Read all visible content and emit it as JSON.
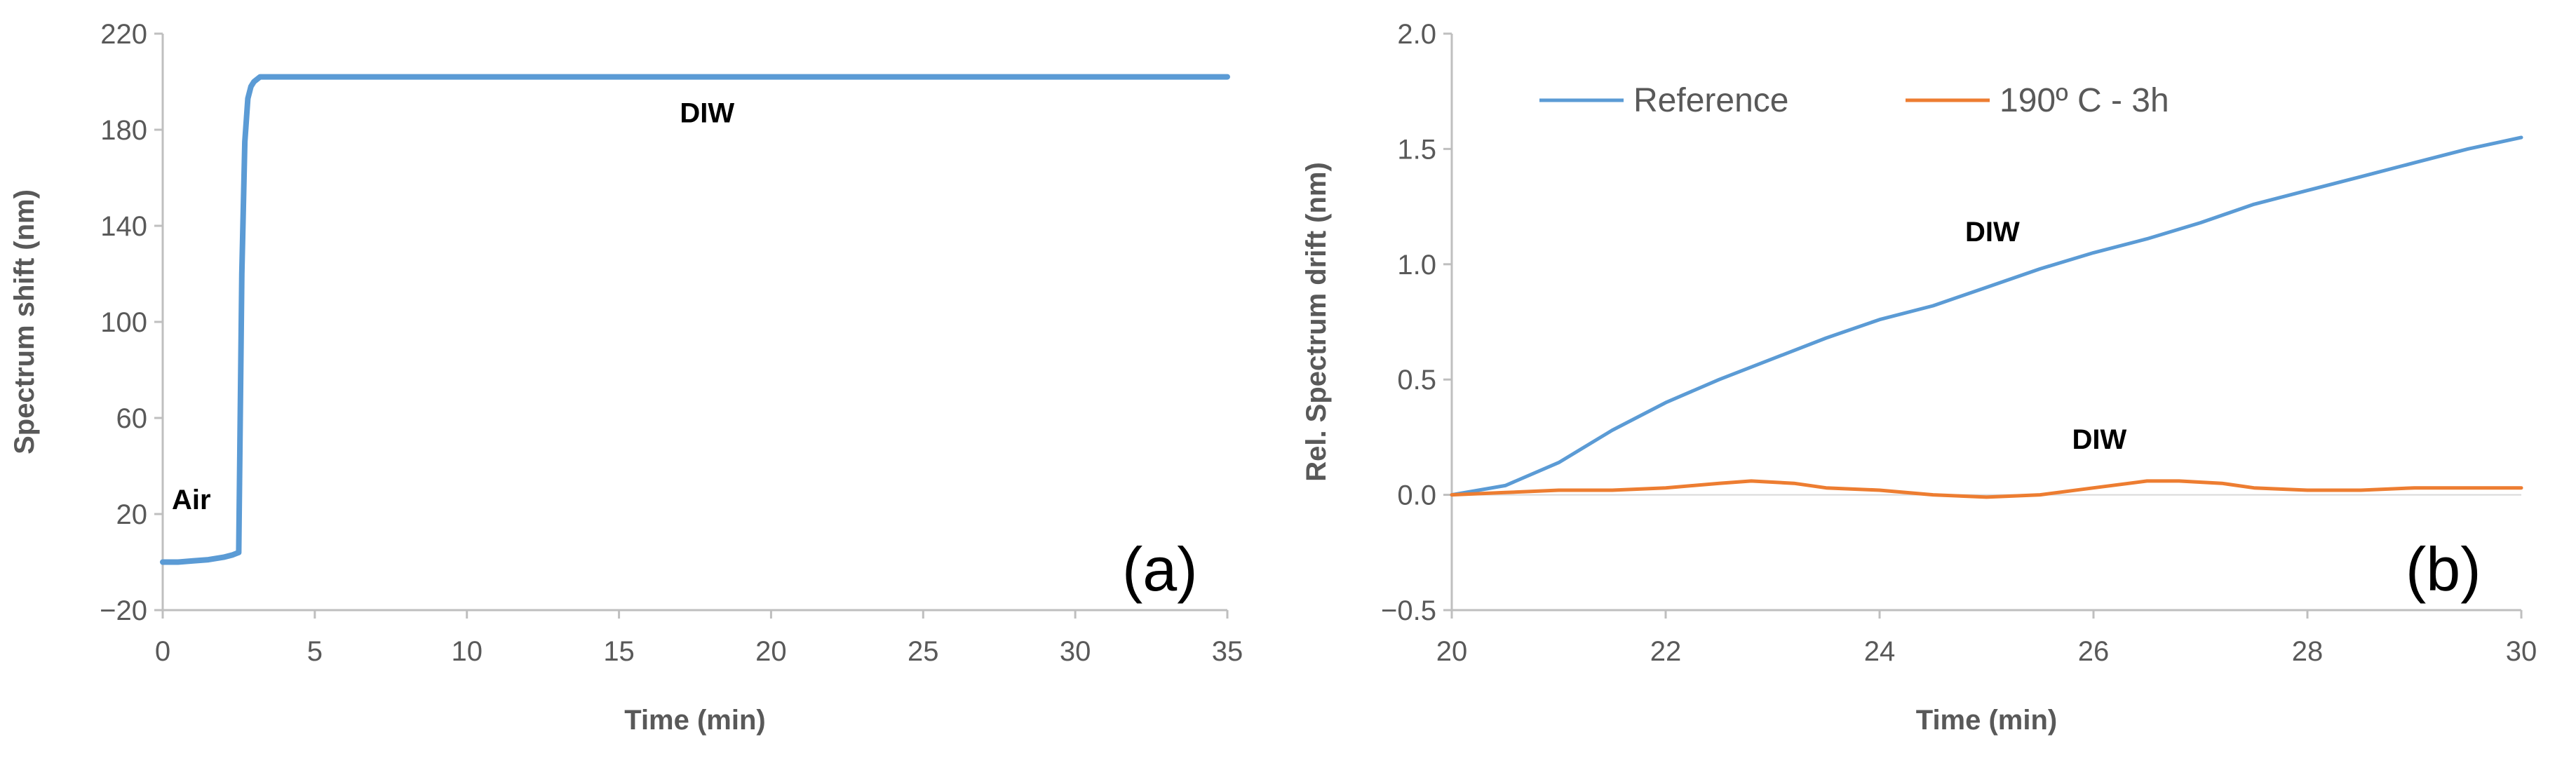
{
  "chart_data": [
    {
      "type": "line",
      "panel_label": "(a)",
      "xlabel": "Time (min)",
      "ylabel": "Spectrum shift (nm)",
      "xlim": [
        0,
        35
      ],
      "ylim": [
        -20,
        220
      ],
      "xticks": [
        0,
        5,
        10,
        15,
        20,
        25,
        30,
        35
      ],
      "yticks": [
        -20,
        20,
        60,
        100,
        140,
        180,
        220
      ],
      "ytick_labels": [
        "−20",
        "20",
        "60",
        "100",
        "140",
        "180",
        "220"
      ],
      "grid": false,
      "legend": "none",
      "annotations": [
        {
          "text": "Air",
          "x": 0.3,
          "y": 22
        },
        {
          "text": "DIW",
          "x": 17.0,
          "y": 183
        }
      ],
      "series": [
        {
          "color": "#5b9bd5",
          "x": [
            0,
            0.5,
            1.0,
            1.5,
            2.0,
            2.3,
            2.5,
            2.6,
            2.7,
            2.8,
            2.9,
            3.0,
            3.2,
            3.5,
            5,
            10,
            15,
            20,
            25,
            30,
            35
          ],
          "y": [
            0,
            0,
            0.5,
            1,
            2,
            3,
            4,
            120,
            175,
            193,
            198,
            200,
            202,
            202,
            202,
            202,
            202,
            202,
            202,
            202,
            202
          ]
        }
      ]
    },
    {
      "type": "line",
      "panel_label": "(b)",
      "xlabel": "Time (min)",
      "ylabel": "Rel. Spectrum drift (nm)",
      "xlim": [
        20,
        30
      ],
      "ylim": [
        -0.5,
        2.0
      ],
      "xticks": [
        20,
        22,
        24,
        26,
        28,
        30
      ],
      "yticks": [
        -0.5,
        0.0,
        0.5,
        1.0,
        1.5,
        2.0
      ],
      "ytick_labels": [
        "−0.5",
        "0.0",
        "0.5",
        "1.0",
        "1.5",
        "2.0"
      ],
      "grid": false,
      "legend": "top-left",
      "annotations": [
        {
          "text": "DIW",
          "x": 24.8,
          "y": 1.1
        },
        {
          "text": "DIW",
          "x": 25.8,
          "y": 0.2
        }
      ],
      "series": [
        {
          "name": "Reference",
          "color": "#5b9bd5",
          "x": [
            20,
            20.5,
            21,
            21.5,
            22,
            22.5,
            23,
            23.5,
            24,
            24.5,
            25,
            25.5,
            26,
            26.5,
            27,
            27.5,
            28,
            28.5,
            29,
            29.5,
            30
          ],
          "y": [
            0.0,
            0.04,
            0.14,
            0.28,
            0.4,
            0.5,
            0.59,
            0.68,
            0.76,
            0.82,
            0.9,
            0.98,
            1.05,
            1.11,
            1.18,
            1.26,
            1.32,
            1.38,
            1.44,
            1.5,
            1.55
          ]
        },
        {
          "name": "190º C - 3h",
          "color": "#ed7d31",
          "x": [
            20,
            20.5,
            21,
            21.5,
            22,
            22.5,
            22.8,
            23.2,
            23.5,
            24,
            24.5,
            25,
            25.5,
            26,
            26.5,
            26.8,
            27.2,
            27.5,
            28,
            28.5,
            29,
            29.5,
            30
          ],
          "y": [
            0.0,
            0.01,
            0.02,
            0.02,
            0.03,
            0.05,
            0.06,
            0.05,
            0.03,
            0.02,
            0.0,
            -0.01,
            0.0,
            0.03,
            0.06,
            0.06,
            0.05,
            0.03,
            0.02,
            0.02,
            0.03,
            0.03,
            0.03
          ]
        }
      ]
    }
  ]
}
